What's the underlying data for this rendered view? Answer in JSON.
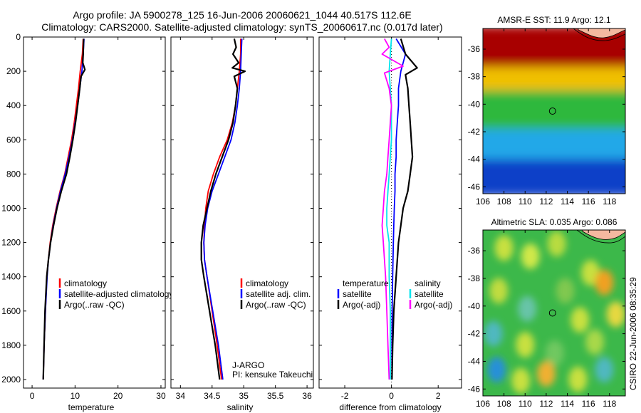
{
  "header": {
    "title_line1": "Argo profile: JA 5900278_125 16-Jun-2006 20060621_1044 40.517S 112.6E",
    "title_line2": "Climatology: CARS2000. Satellite-adjusted climatology: synTS_20060617.nc (0.017d later)"
  },
  "colors": {
    "climatology": "#ff0000",
    "satellite": "#0000ff",
    "argo": "#000000",
    "sat_salinity": "#00e5ee",
    "argo_salinity": "#ff00ff"
  },
  "chart_data": [
    {
      "type": "line",
      "xlabel": "temperature",
      "ylabel": "",
      "xlim": [
        -2,
        31
      ],
      "ylim": [
        2050,
        0
      ],
      "xticks": [
        "0",
        "10",
        "20",
        "30"
      ],
      "yticks": [
        "0",
        "200",
        "400",
        "600",
        "800",
        "1000",
        "1200",
        "1400",
        "1600",
        "1800",
        "2000"
      ],
      "series": [
        {
          "name": "climatology",
          "color": "#ff0000",
          "points": [
            [
              11.9,
              10
            ],
            [
              11.7,
              100
            ],
            [
              11.2,
              200
            ],
            [
              10.8,
              300
            ],
            [
              10.3,
              400
            ],
            [
              9.8,
              500
            ],
            [
              9.2,
              600
            ],
            [
              8.4,
              700
            ],
            [
              7.6,
              800
            ],
            [
              6.5,
              900
            ],
            [
              5.6,
              1000
            ],
            [
              4.8,
              1100
            ],
            [
              4.2,
              1200
            ],
            [
              3.8,
              1300
            ],
            [
              3.4,
              1400
            ],
            [
              3.1,
              1600
            ],
            [
              2.8,
              1800
            ],
            [
              2.6,
              2000
            ]
          ]
        },
        {
          "name": "satellite-adjusted climatology",
          "color": "#0000ff",
          "points": [
            [
              12.1,
              10
            ],
            [
              11.9,
              100
            ],
            [
              11.6,
              200
            ],
            [
              11.1,
              300
            ],
            [
              10.6,
              400
            ],
            [
              10.0,
              500
            ],
            [
              9.4,
              600
            ],
            [
              8.6,
              700
            ],
            [
              7.7,
              800
            ],
            [
              6.6,
              900
            ],
            [
              5.7,
              1000
            ],
            [
              4.9,
              1100
            ],
            [
              4.3,
              1200
            ],
            [
              3.8,
              1300
            ],
            [
              3.5,
              1400
            ],
            [
              3.1,
              1600
            ],
            [
              2.8,
              1800
            ],
            [
              2.6,
              2000
            ]
          ]
        },
        {
          "name": "Argo(..raw -QC)",
          "color": "#000000",
          "points": [
            [
              12.0,
              10
            ],
            [
              11.9,
              100
            ],
            [
              11.8,
              150
            ],
            [
              12.3,
              190
            ],
            [
              11.4,
              230
            ],
            [
              11.1,
              300
            ],
            [
              10.6,
              400
            ],
            [
              10.1,
              500
            ],
            [
              9.5,
              600
            ],
            [
              8.8,
              700
            ],
            [
              8.0,
              800
            ],
            [
              6.8,
              900
            ],
            [
              5.8,
              1000
            ],
            [
              5.0,
              1100
            ],
            [
              4.3,
              1200
            ],
            [
              3.8,
              1300
            ],
            [
              3.4,
              1400
            ],
            [
              3.0,
              1600
            ],
            [
              2.8,
              1800
            ],
            [
              2.6,
              2000
            ]
          ]
        }
      ],
      "legend": [
        "climatology",
        "satellite-adjusted climatology",
        "Argo(..raw -QC)"
      ],
      "legend_position": "lower-right"
    },
    {
      "type": "line",
      "xlabel": "salinity",
      "ylabel": "",
      "xlim": [
        33.85,
        36.1
      ],
      "ylim": [
        2050,
        0
      ],
      "xticks": [
        "34",
        "34.5",
        "35",
        "35.5",
        "36"
      ],
      "series": [
        {
          "name": "climatology",
          "color": "#ff0000",
          "points": [
            [
              34.95,
              10
            ],
            [
              34.95,
              100
            ],
            [
              34.93,
              200
            ],
            [
              34.9,
              300
            ],
            [
              34.87,
              400
            ],
            [
              34.82,
              500
            ],
            [
              34.74,
              600
            ],
            [
              34.62,
              700
            ],
            [
              34.52,
              800
            ],
            [
              34.44,
              900
            ],
            [
              34.4,
              1000
            ],
            [
              34.38,
              1100
            ],
            [
              34.37,
              1200
            ],
            [
              34.38,
              1300
            ],
            [
              34.42,
              1400
            ],
            [
              34.5,
              1600
            ],
            [
              34.58,
              1800
            ],
            [
              34.65,
              2000
            ]
          ]
        },
        {
          "name": "satellite adj. clim.",
          "color": "#0000ff",
          "points": [
            [
              34.97,
              10
            ],
            [
              34.96,
              100
            ],
            [
              34.95,
              200
            ],
            [
              34.93,
              300
            ],
            [
              34.9,
              400
            ],
            [
              34.86,
              500
            ],
            [
              34.8,
              600
            ],
            [
              34.7,
              700
            ],
            [
              34.6,
              800
            ],
            [
              34.5,
              900
            ],
            [
              34.43,
              1000
            ],
            [
              34.39,
              1100
            ],
            [
              34.37,
              1200
            ],
            [
              34.38,
              1300
            ],
            [
              34.42,
              1400
            ],
            [
              34.51,
              1600
            ],
            [
              34.6,
              1800
            ],
            [
              34.67,
              2000
            ]
          ]
        },
        {
          "name": "Argo(..raw -QC)",
          "color": "#000000",
          "points": [
            [
              34.85,
              10
            ],
            [
              34.88,
              60
            ],
            [
              34.83,
              100
            ],
            [
              34.92,
              150
            ],
            [
              34.82,
              180
            ],
            [
              35.02,
              200
            ],
            [
              34.85,
              230
            ],
            [
              34.9,
              300
            ],
            [
              34.87,
              400
            ],
            [
              34.83,
              500
            ],
            [
              34.76,
              600
            ],
            [
              34.66,
              700
            ],
            [
              34.56,
              800
            ],
            [
              34.48,
              900
            ],
            [
              34.42,
              1000
            ],
            [
              34.36,
              1100
            ],
            [
              34.33,
              1200
            ],
            [
              34.33,
              1300
            ],
            [
              34.37,
              1400
            ],
            [
              34.46,
              1600
            ],
            [
              34.55,
              1800
            ],
            [
              34.62,
              2000
            ]
          ]
        }
      ],
      "legend": [
        "climatology",
        "satellite adj. clim.",
        "Argo(..raw -QC)"
      ],
      "legend_position": "lower-right",
      "annotation_lines": [
        "J-ARGO",
        "PI: kensuke Takeuchi"
      ]
    },
    {
      "type": "line",
      "xlabel": "difference from climatology",
      "ylabel": "",
      "xlim": [
        -3.1,
        3.0
      ],
      "ylim": [
        2050,
        0
      ],
      "xticks": [
        "-2",
        "0",
        "2"
      ],
      "reference_line": "dotted vertical at x = 0",
      "series": [
        {
          "name": "satellite",
          "group": "temperature",
          "color": "#0000ff",
          "points": [
            [
              0.2,
              10
            ],
            [
              0.6,
              100
            ],
            [
              0.4,
              200
            ],
            [
              0.3,
              300
            ],
            [
              0.3,
              400
            ],
            [
              0.25,
              500
            ],
            [
              0.2,
              600
            ],
            [
              0.2,
              700
            ],
            [
              0.15,
              800
            ],
            [
              0.15,
              900
            ],
            [
              0.12,
              1000
            ],
            [
              0.1,
              1100
            ],
            [
              0.08,
              1200
            ],
            [
              0.05,
              1400
            ],
            [
              0.03,
              1600
            ],
            [
              0.02,
              1800
            ],
            [
              0.02,
              2000
            ]
          ]
        },
        {
          "name": "Argo(-adj)",
          "group": "temperature",
          "color": "#000000",
          "points": [
            [
              0.4,
              10
            ],
            [
              0.6,
              100
            ],
            [
              1.1,
              180
            ],
            [
              0.6,
              220
            ],
            [
              0.7,
              300
            ],
            [
              0.75,
              400
            ],
            [
              0.8,
              500
            ],
            [
              0.85,
              600
            ],
            [
              0.9,
              700
            ],
            [
              0.8,
              800
            ],
            [
              0.7,
              900
            ],
            [
              0.5,
              1000
            ],
            [
              0.4,
              1100
            ],
            [
              0.3,
              1200
            ],
            [
              0.2,
              1400
            ],
            [
              0.1,
              1600
            ],
            [
              0.05,
              1800
            ],
            [
              0.02,
              2000
            ]
          ]
        },
        {
          "name": "satellite",
          "group": "salinity",
          "color": "#00e5ee",
          "points": [
            [
              0.0,
              10
            ],
            [
              -0.05,
              100
            ],
            [
              -0.1,
              200
            ],
            [
              -0.05,
              300
            ],
            [
              0.0,
              400
            ],
            [
              0.0,
              500
            ],
            [
              0.0,
              600
            ],
            [
              -0.05,
              700
            ],
            [
              -0.1,
              800
            ],
            [
              -0.15,
              900
            ],
            [
              -0.2,
              1000
            ],
            [
              -0.2,
              1100
            ],
            [
              -0.1,
              1200
            ],
            [
              -0.1,
              1400
            ],
            [
              -0.05,
              1600
            ],
            [
              -0.05,
              1800
            ],
            [
              -0.05,
              2000
            ]
          ]
        },
        {
          "name": "Argo(-adj)",
          "group": "salinity",
          "color": "#ff00ff",
          "points": [
            [
              -0.3,
              10
            ],
            [
              -0.1,
              60
            ],
            [
              -0.4,
              100
            ],
            [
              0.5,
              170
            ],
            [
              -0.3,
              210
            ],
            [
              -0.1,
              300
            ],
            [
              0.0,
              400
            ],
            [
              -0.05,
              500
            ],
            [
              -0.1,
              600
            ],
            [
              -0.15,
              700
            ],
            [
              -0.2,
              800
            ],
            [
              -0.3,
              900
            ],
            [
              -0.35,
              1000
            ],
            [
              -0.4,
              1100
            ],
            [
              -0.35,
              1200
            ],
            [
              -0.3,
              1300
            ],
            [
              -0.25,
              1400
            ],
            [
              -0.2,
              1600
            ],
            [
              -0.15,
              1800
            ],
            [
              -0.1,
              2000
            ]
          ]
        }
      ],
      "legend_groups": [
        {
          "title": "temperature",
          "items": [
            "satellite",
            "Argo(-adj)"
          ]
        },
        {
          "title": "salinity",
          "items": [
            "satellite",
            "Argo(-adj)"
          ]
        }
      ]
    },
    {
      "type": "heatmap",
      "title": "AMSR-E SST: 11.9  Argo: 12.1",
      "xlim": [
        106,
        119.5
      ],
      "ylim": [
        -46.5,
        -34.5
      ],
      "xticks": [
        "106",
        "108",
        "110",
        "112",
        "114",
        "116",
        "118"
      ],
      "yticks": [
        "-36",
        "-38",
        "-40",
        "-42",
        "-44",
        "-46"
      ],
      "marker": {
        "lon": 112.6,
        "lat": -40.5
      },
      "color_bands": [
        {
          "from_lat": -34.5,
          "to_lat": -37.5,
          "color": "#a80000"
        },
        {
          "from_lat": -37.5,
          "to_lat": -39.2,
          "color": "#f0c000"
        },
        {
          "from_lat": -39.2,
          "to_lat": -42.0,
          "color": "#2fb83e"
        },
        {
          "from_lat": -42.0,
          "to_lat": -44.2,
          "color": "#20a8e8"
        },
        {
          "from_lat": -44.2,
          "to_lat": -46.5,
          "color": "#1040c8"
        }
      ]
    },
    {
      "type": "heatmap",
      "title": "Altimetric SLA: 0.035  Argo: 0.086",
      "xlim": [
        106,
        119.5
      ],
      "ylim": [
        -46.5,
        -34.5
      ],
      "xticks": [
        "106",
        "108",
        "110",
        "112",
        "114",
        "116",
        "118"
      ],
      "yticks": [
        "-36",
        "-38",
        "-40",
        "-42",
        "-44",
        "-46"
      ],
      "marker": {
        "lon": 112.6,
        "lat": -40.5
      },
      "background_color": "#3cb84a",
      "blobs": [
        {
          "lon": 108.0,
          "lat": -35.8,
          "color": "#c8e040"
        },
        {
          "lon": 110.5,
          "lat": -36.4,
          "color": "#d0e848"
        },
        {
          "lon": 113.0,
          "lat": -35.5,
          "color": "#b8dc40"
        },
        {
          "lon": 116.2,
          "lat": -37.6,
          "color": "#c8e040"
        },
        {
          "lon": 117.5,
          "lat": -38.3,
          "color": "#f0a020"
        },
        {
          "lon": 107.5,
          "lat": -38.9,
          "color": "#c0dc40"
        },
        {
          "lon": 110.2,
          "lat": -40.2,
          "color": "#68c4a8"
        },
        {
          "lon": 113.8,
          "lat": -38.9,
          "color": "#80c850"
        },
        {
          "lon": 115.2,
          "lat": -41.0,
          "color": "#c8e040"
        },
        {
          "lon": 118.6,
          "lat": -40.6,
          "color": "#e6d840"
        },
        {
          "lon": 107.0,
          "lat": -42.0,
          "color": "#50b8c0"
        },
        {
          "lon": 110.0,
          "lat": -42.8,
          "color": "#c8e040"
        },
        {
          "lon": 112.8,
          "lat": -43.4,
          "color": "#70c860"
        },
        {
          "lon": 116.6,
          "lat": -42.6,
          "color": "#a8d848"
        },
        {
          "lon": 107.3,
          "lat": -44.6,
          "color": "#2890d8"
        },
        {
          "lon": 109.6,
          "lat": -45.4,
          "color": "#c8e040"
        },
        {
          "lon": 112.0,
          "lat": -44.9,
          "color": "#f0b030"
        },
        {
          "lon": 115.0,
          "lat": -45.3,
          "color": "#c8e040"
        },
        {
          "lon": 117.5,
          "lat": -44.6,
          "color": "#50b8c0"
        }
      ]
    }
  ],
  "footer": {
    "stamp": "CSIRO 22-Jun-2006 08:35:29"
  }
}
